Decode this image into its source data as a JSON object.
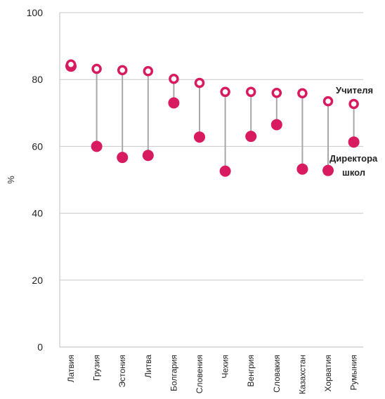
{
  "chart_data": {
    "type": "scatter",
    "ylabel": "%",
    "ylim": [
      0,
      100
    ],
    "yticks": [
      0,
      20,
      40,
      60,
      80,
      100
    ],
    "grid": true,
    "categories": [
      "Латвия",
      "Грузия",
      "Эстония",
      "Литва",
      "Болгария",
      "Словения",
      "Чехия",
      "Венгрия",
      "Словакия",
      "Казахстан",
      "Хорватия",
      "Румыния"
    ],
    "series": [
      {
        "name": "Учителя",
        "marker": "open-circle",
        "values": [
          84.5,
          83.2,
          82.8,
          82.5,
          80.2,
          79.0,
          76.3,
          76.3,
          76.0,
          75.9,
          73.5,
          72.7
        ]
      },
      {
        "name": "Директора школ",
        "marker": "filled-circle",
        "values": [
          84.0,
          60.0,
          56.7,
          57.3,
          73.0,
          62.8,
          52.6,
          63.0,
          66.5,
          53.2,
          52.8,
          61.3
        ]
      }
    ],
    "annotations": [
      {
        "text": "Учителя"
      },
      {
        "text": "Директора"
      },
      {
        "text": "школ"
      }
    ],
    "colors": {
      "marker": "#d81b60",
      "stem": "#a8a8a8",
      "grid": "#c9c9c9"
    }
  }
}
